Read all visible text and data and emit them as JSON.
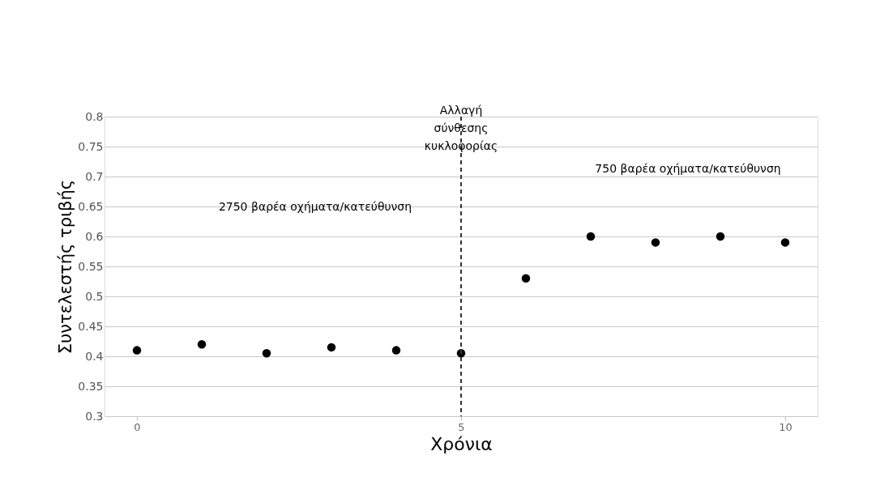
{
  "chart_data": {
    "type": "scatter",
    "xlabel": "Χρόνια",
    "ylabel": "Συντελεστής τριβής",
    "x": [
      0,
      1,
      2,
      3,
      4,
      5,
      6,
      7,
      8,
      9,
      10
    ],
    "series": [
      {
        "color": "#000000",
        "values": [
          0.41,
          0.42,
          0.405,
          0.415,
          0.41,
          0.405,
          0.53,
          0.6,
          0.59,
          0.6,
          0.59
        ]
      }
    ],
    "xlim": [
      -0.5,
      10.5
    ],
    "xticks": [
      0,
      5,
      10
    ],
    "ylim": [
      0.3,
      0.8
    ],
    "yticks": [
      0.3,
      0.35,
      0.4,
      0.45,
      0.5,
      0.55,
      0.6,
      0.65,
      0.7,
      0.75,
      0.8
    ],
    "grid": "y",
    "marker": "circle",
    "ref_lines": [
      {
        "axis": "x",
        "value": 5,
        "label": "Αλλαγή σύνθεσης κυκλοφορίας",
        "line_style": "dashed",
        "color": "#333333"
      }
    ],
    "annotations": [
      "2750 βαρέα οχήματα/κατεύθυνση",
      "750 βαρέα οχήματα/κατεύθυνση"
    ]
  }
}
